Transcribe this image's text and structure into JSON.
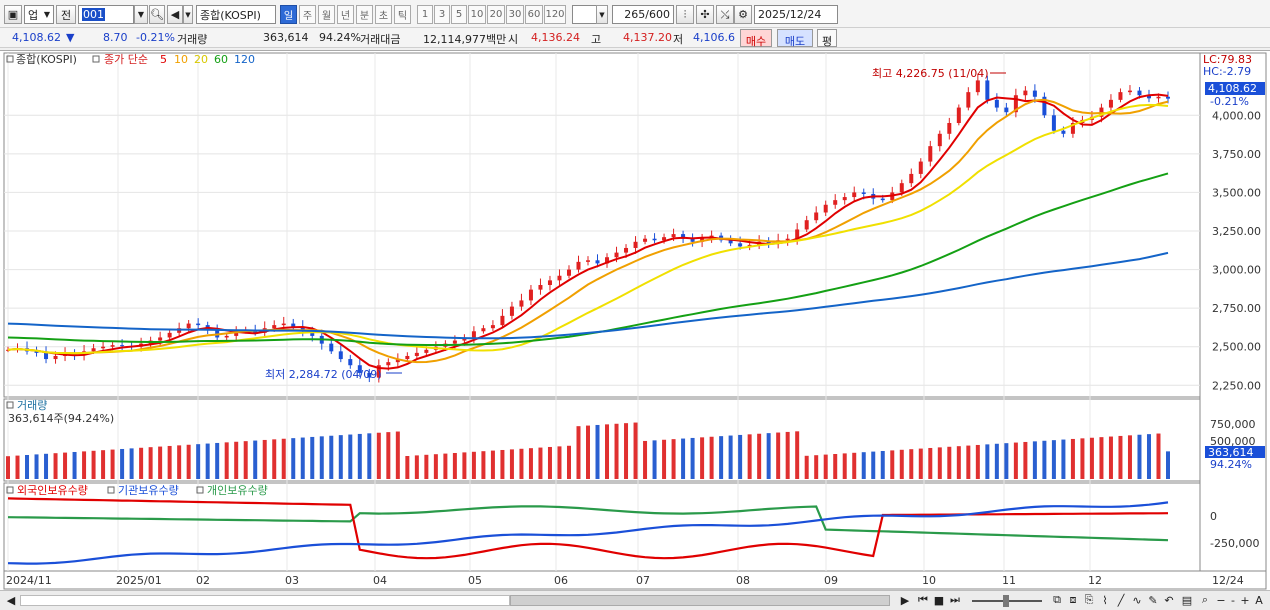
{
  "toolbar": {
    "market_select": "업",
    "prev_label": "전",
    "code_value": "001",
    "name_value": "종합(KOSPI)",
    "periods": [
      "일",
      "주",
      "월",
      "년",
      "분",
      "초",
      "틱"
    ],
    "active_period": "일",
    "minutes": [
      "1",
      "3",
      "5",
      "10",
      "20",
      "30",
      "60",
      "120"
    ],
    "count_value": "265",
    "count_total": "/600",
    "date_value": "2025/12/24"
  },
  "info": {
    "price": "4,108.62",
    "arrow": "▼",
    "change": "8.70",
    "change_pct": "-0.21%",
    "volume_label": "거래량",
    "volume": "363,614",
    "volume_pct": "94.24%",
    "amount_label": "거래대금",
    "amount": "12,114,977백만",
    "open_label": "시",
    "open": "4,136.24",
    "high_label": "고",
    "high": "4,137.20",
    "low_label": "저",
    "low": "4,106.6",
    "buy_label": "매수",
    "sell_label": "매도",
    "avg_label": "평"
  },
  "price_panel": {
    "legend_name": "종합(KOSPI)",
    "legend_ma": "종가 단순",
    "ma_periods": [
      "5",
      "10",
      "20",
      "60",
      "120"
    ],
    "ma_colors": [
      "#e00000",
      "#f0a000",
      "#f0e000",
      "#14a014",
      "#1464c8"
    ],
    "high_annotation": "최고 4,226.75 (11/04)",
    "low_annotation": "최저 2,284.72 (04/09)",
    "lc_label": "LC:79.83",
    "hc_label": "HC:-2.79",
    "last_price": "4,108.62",
    "last_pct": "-0.21%",
    "y_ticks": [
      "4,000.00",
      "3,750.00",
      "3,500.00",
      "3,250.00",
      "3,000.00",
      "2,750.00",
      "2,500.00",
      "2,250.00"
    ]
  },
  "volume_panel": {
    "title": "거래량",
    "value_text": "363,614주(94.24%)",
    "y_ticks": [
      "750,000",
      "500,000"
    ],
    "last_value": "363,614",
    "last_pct": "94.24%"
  },
  "holdings_panel": {
    "legend": [
      "외국인보유수량",
      "기관보유수량",
      "개인보유수량"
    ],
    "colors": [
      "#e00000",
      "#1a4fd8",
      "#2a9a4a"
    ],
    "y_ticks": [
      "0",
      "-250,000"
    ]
  },
  "x_axis": {
    "labels": [
      "2024/11",
      "2025/01",
      "02",
      "03",
      "04",
      "05",
      "06",
      "07",
      "08",
      "09",
      "10",
      "11",
      "12"
    ],
    "right_label": "12/24"
  },
  "chart_data": {
    "type": "line",
    "series_note": "",
    "close": [
      2480,
      2490,
      2470,
      2460,
      2420,
      2440,
      2455,
      2450,
      2470,
      2490,
      2500,
      2510,
      2505,
      2500,
      2520,
      2540,
      2560,
      2590,
      2620,
      2650,
      2640,
      2610,
      2560,
      2570,
      2600,
      2610,
      2590,
      2620,
      2640,
      2650,
      2630,
      2600,
      2570,
      2520,
      2470,
      2420,
      2380,
      2330,
      2300,
      2380,
      2400,
      2420,
      2440,
      2460,
      2480,
      2500,
      2520,
      2540,
      2560,
      2600,
      2620,
      2640,
      2700,
      2760,
      2800,
      2870,
      2900,
      2930,
      2960,
      3000,
      3050,
      3060,
      3040,
      3080,
      3110,
      3140,
      3180,
      3200,
      3190,
      3210,
      3230,
      3200,
      3180,
      3210,
      3220,
      3190,
      3170,
      3150,
      3160,
      3180,
      3170,
      3190,
      3200,
      3260,
      3320,
      3370,
      3420,
      3450,
      3470,
      3500,
      3490,
      3460,
      3450,
      3500,
      3560,
      3620,
      3700,
      3800,
      3880,
      3950,
      4050,
      4150,
      4226,
      4100,
      4050,
      4020,
      4130,
      4160,
      4120,
      4000,
      3900,
      3880,
      3950,
      3970,
      3990,
      4050,
      4100,
      4150,
      4160,
      4130,
      4110,
      4120,
      4108
    ],
    "x_labels": [
      "2024/11",
      "2025/01",
      "02",
      "03",
      "04",
      "05",
      "06",
      "07",
      "08",
      "09",
      "10",
      "11",
      "12"
    ],
    "ylim": [
      2200,
      4300
    ],
    "volume_ylim": [
      0,
      1000000
    ],
    "volume_last": 363614
  }
}
